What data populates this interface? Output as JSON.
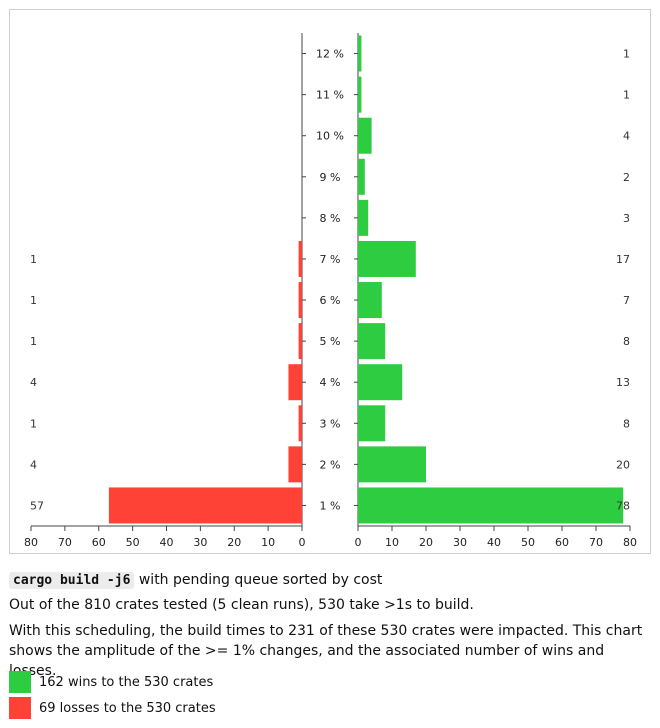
{
  "chart_data": {
    "type": "bar",
    "orientation": "horizontal-butterfly",
    "categories": [
      "1 %",
      "2 %",
      "3 %",
      "4 %",
      "5 %",
      "6 %",
      "7 %",
      "8 %",
      "9 %",
      "10 %",
      "11 %",
      "12 %"
    ],
    "series": [
      {
        "name": "162 wins to the 530 crates",
        "color": "#2ecc40",
        "values": [
          78,
          20,
          8,
          13,
          8,
          7,
          17,
          3,
          2,
          4,
          1,
          1
        ]
      },
      {
        "name": "69 losses to the 530 crates",
        "color": "#ff4136",
        "values": [
          57,
          4,
          1,
          4,
          1,
          1,
          1,
          0,
          0,
          0,
          0,
          0
        ]
      }
    ],
    "wins_axis": {
      "ticks": [
        0,
        10,
        20,
        30,
        40,
        50,
        60,
        70,
        80
      ],
      "xlim": [
        0,
        80
      ]
    },
    "losses_axis": {
      "ticks": [
        80,
        70,
        60,
        50,
        40,
        30,
        20,
        10,
        0
      ],
      "xlim": [
        0,
        80
      ]
    },
    "legend_placement": "bottom"
  },
  "caption": {
    "command": "cargo build -j6",
    "title_suffix": " with pending queue sorted by cost",
    "line1": "Out of the 810 crates tested (5 clean runs), 530 take >1s to build.",
    "line2": "With this scheduling, the build times to 231 of these 530 crates were impacted. This chart shows the amplitude of the >= 1% changes, and the associated number of wins and losses."
  }
}
